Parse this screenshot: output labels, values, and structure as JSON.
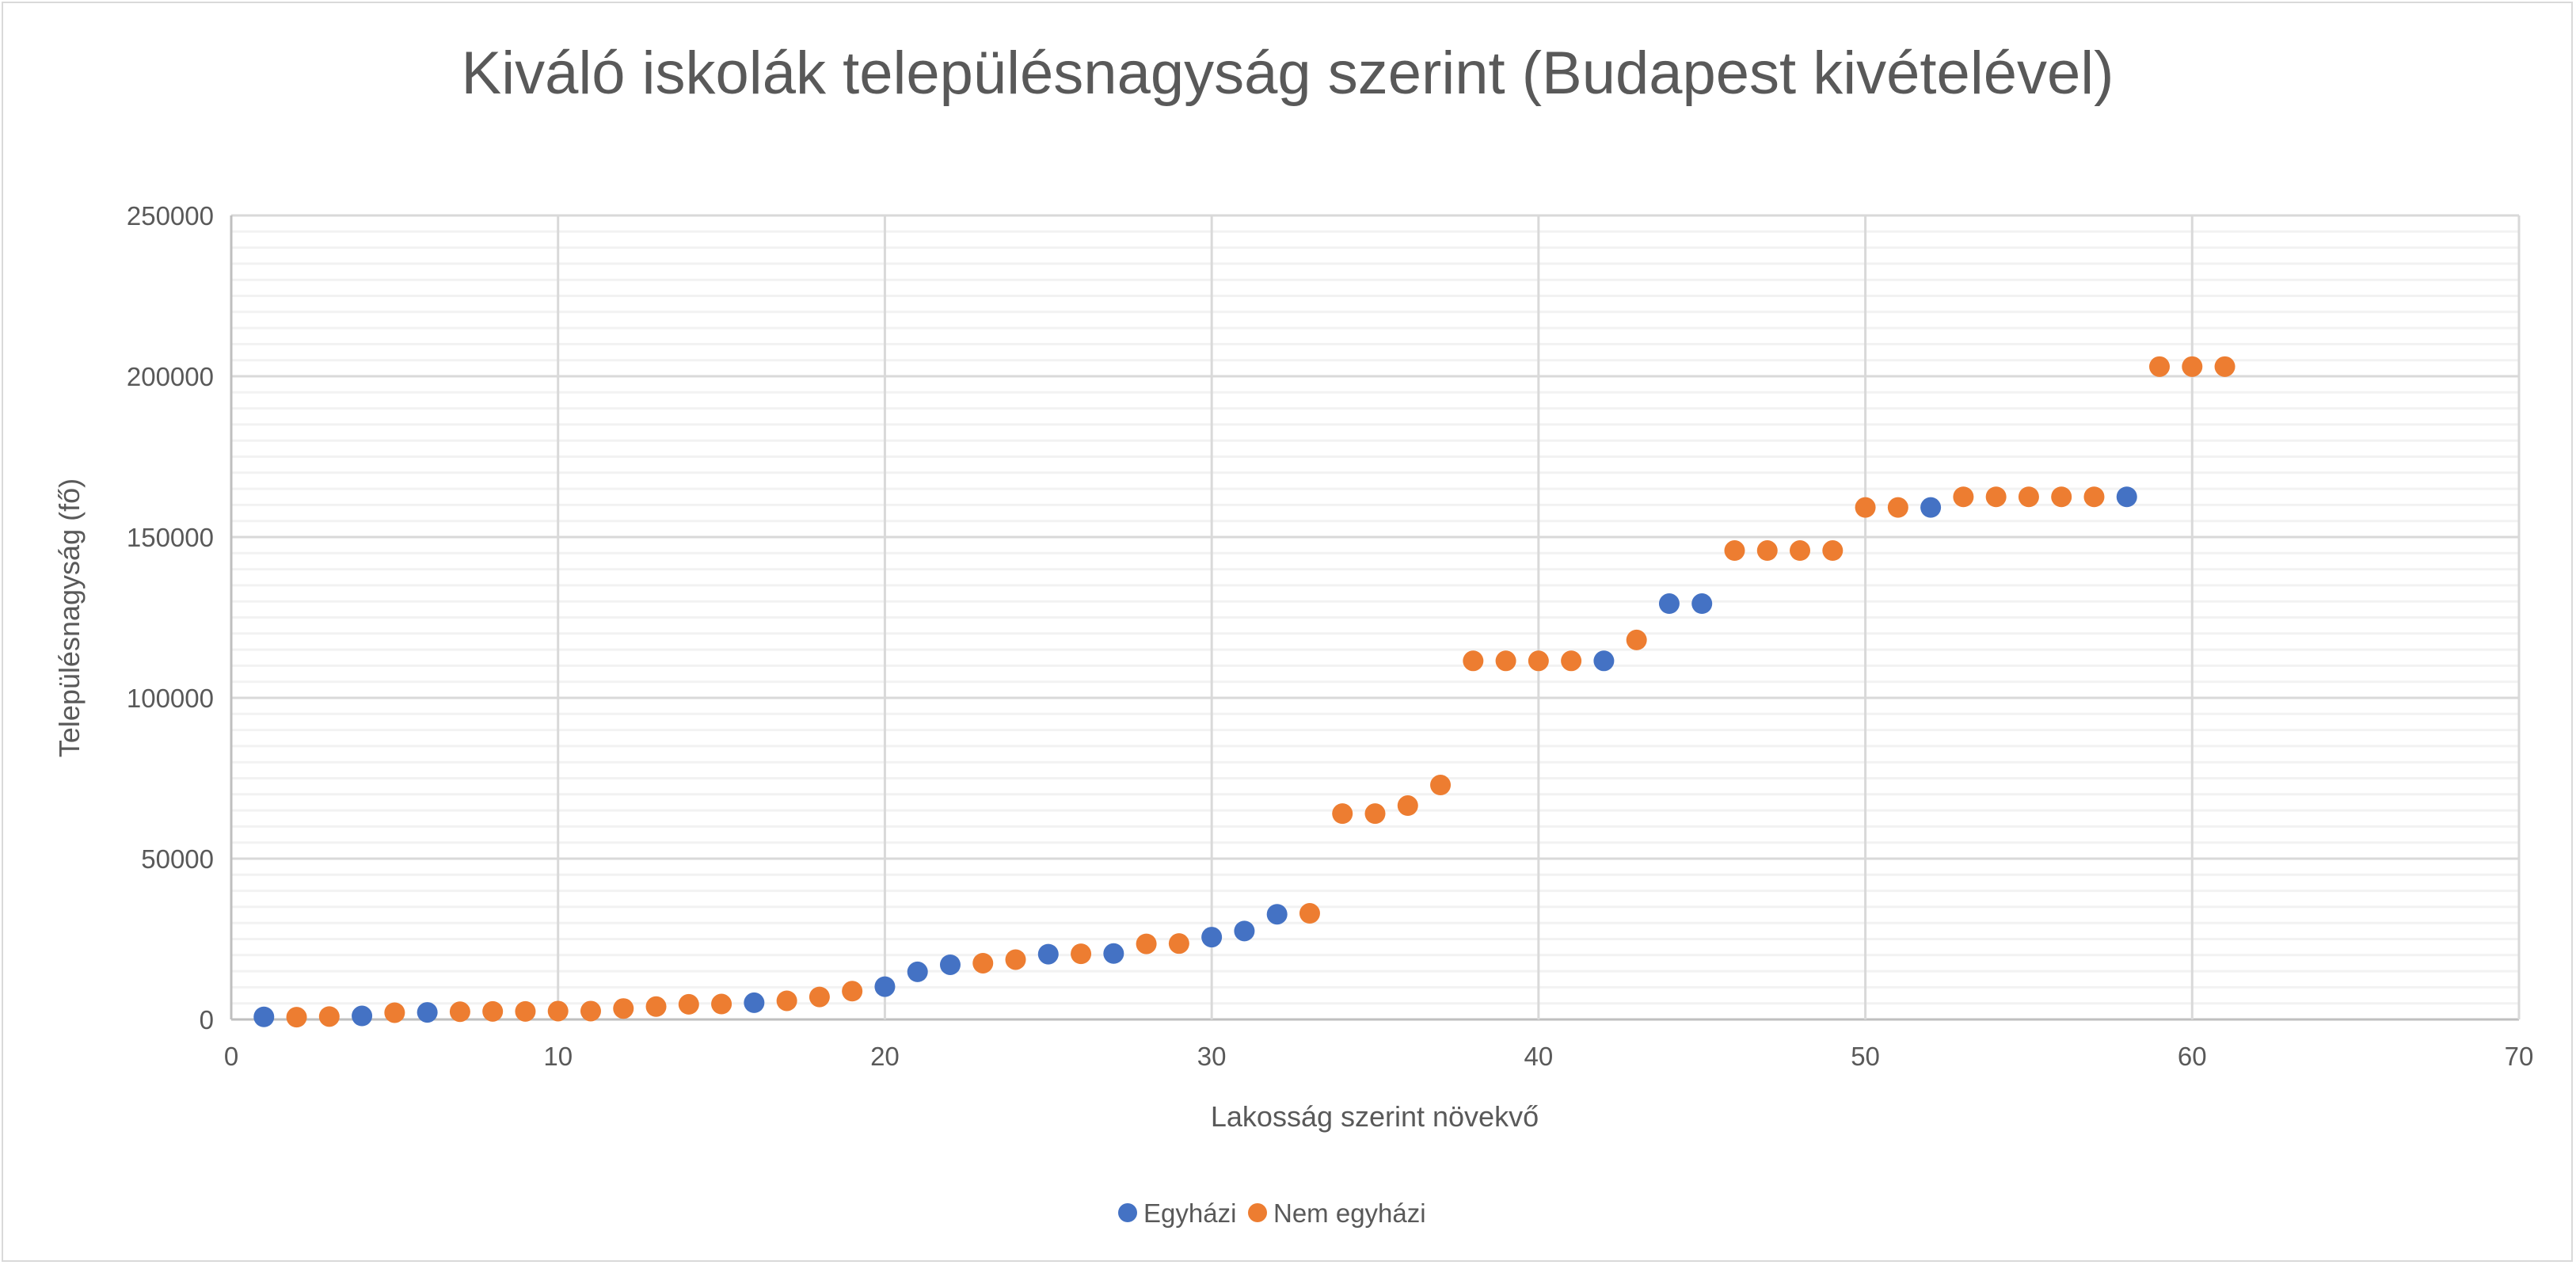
{
  "chart_data": {
    "type": "scatter",
    "title": "Kiváló iskolák településnagyság szerint (Budapest kivételével)",
    "xlabel": "Lakosság szerint  növekvő",
    "ylabel": "Településnagyság (fő)",
    "xlim": [
      0,
      70
    ],
    "ylim": [
      0,
      250000
    ],
    "x_ticks": [
      "0",
      "10",
      "20",
      "30",
      "40",
      "50",
      "60",
      "70"
    ],
    "y_ticks": [
      "0",
      "50000",
      "100000",
      "150000",
      "200000",
      "250000"
    ],
    "grid": true,
    "legend_position": "bottom",
    "series": [
      {
        "name": "Egyházi",
        "color": "#4472C4",
        "points": [
          [
            1,
            800
          ],
          [
            4,
            1100
          ],
          [
            6,
            2200
          ],
          [
            16,
            5200
          ],
          [
            20,
            10200
          ],
          [
            21,
            14800
          ],
          [
            22,
            17000
          ],
          [
            25,
            20300
          ],
          [
            27,
            20500
          ],
          [
            30,
            25600
          ],
          [
            31,
            27500
          ],
          [
            32,
            32700
          ],
          [
            42,
            111500
          ],
          [
            44,
            129300
          ],
          [
            45,
            129300
          ],
          [
            52,
            159200
          ],
          [
            58,
            162500
          ]
        ]
      },
      {
        "name": "Nem egyházi",
        "color": "#ED7D31",
        "points": [
          [
            2,
            700
          ],
          [
            3,
            900
          ],
          [
            5,
            2100
          ],
          [
            7,
            2400
          ],
          [
            8,
            2500
          ],
          [
            9,
            2500
          ],
          [
            10,
            2600
          ],
          [
            11,
            2600
          ],
          [
            12,
            3400
          ],
          [
            13,
            4000
          ],
          [
            14,
            4700
          ],
          [
            15,
            4800
          ],
          [
            17,
            5800
          ],
          [
            18,
            7000
          ],
          [
            19,
            8800
          ],
          [
            23,
            17500
          ],
          [
            24,
            18600
          ],
          [
            26,
            20400
          ],
          [
            28,
            23500
          ],
          [
            29,
            23600
          ],
          [
            33,
            33000
          ],
          [
            34,
            64000
          ],
          [
            35,
            64000
          ],
          [
            36,
            66500
          ],
          [
            37,
            72900
          ],
          [
            38,
            111500
          ],
          [
            39,
            111500
          ],
          [
            40,
            111500
          ],
          [
            41,
            111500
          ],
          [
            43,
            118000
          ],
          [
            46,
            145800
          ],
          [
            47,
            145800
          ],
          [
            48,
            145800
          ],
          [
            49,
            145800
          ],
          [
            50,
            159200
          ],
          [
            51,
            159200
          ],
          [
            53,
            162500
          ],
          [
            54,
            162500
          ],
          [
            55,
            162500
          ],
          [
            56,
            162500
          ],
          [
            57,
            162500
          ],
          [
            59,
            203000
          ],
          [
            60,
            203000
          ],
          [
            61,
            203000
          ]
        ]
      }
    ]
  }
}
